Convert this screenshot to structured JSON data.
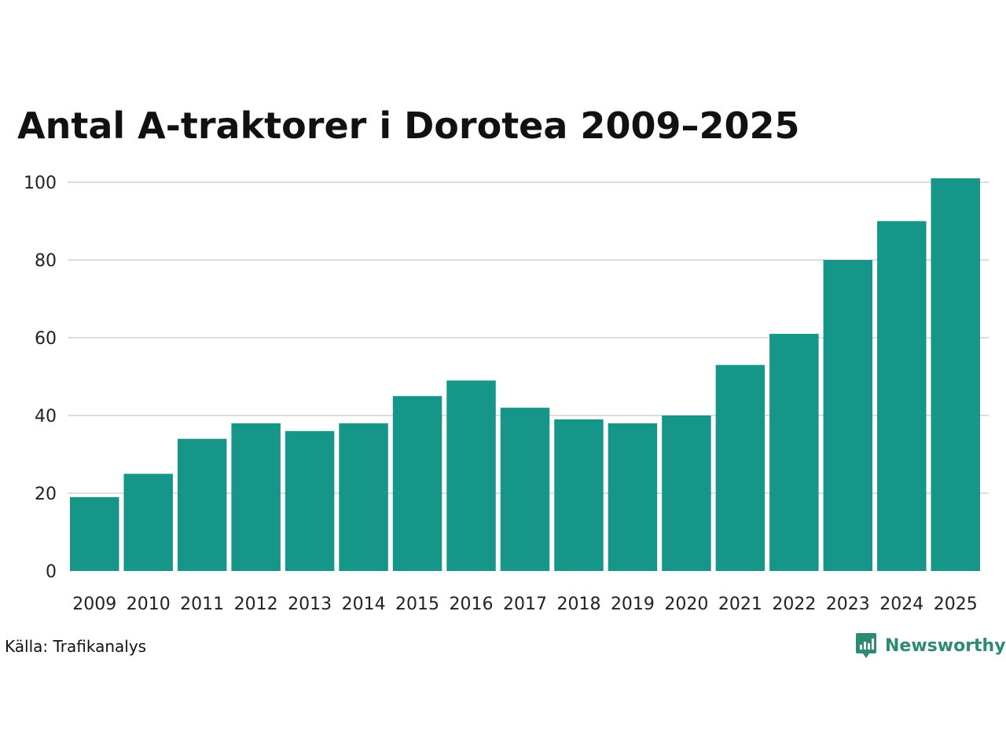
{
  "title": "Antal A-traktorer i Dorotea 2009–2025",
  "source": "Källa: Trafikanalys",
  "brand": {
    "name": "Newsworthy",
    "icon": "newsworthy-logo-icon",
    "color": "#2d8a73"
  },
  "colors": {
    "bar": "#169689",
    "grid": "#dcdde3"
  },
  "chart_data": {
    "type": "bar",
    "categories": [
      "2009",
      "2010",
      "2011",
      "2012",
      "2013",
      "2014",
      "2015",
      "2016",
      "2017",
      "2018",
      "2019",
      "2020",
      "2021",
      "2022",
      "2023",
      "2024",
      "2025"
    ],
    "values": [
      19,
      25,
      34,
      38,
      36,
      38,
      45,
      49,
      42,
      39,
      38,
      40,
      53,
      61,
      80,
      90,
      101
    ],
    "yticks": [
      0,
      20,
      40,
      60,
      80,
      100
    ],
    "ylim": [
      0,
      101
    ],
    "grid": true,
    "title": "Antal A-traktorer i Dorotea 2009–2025",
    "xlabel": "",
    "ylabel": ""
  }
}
